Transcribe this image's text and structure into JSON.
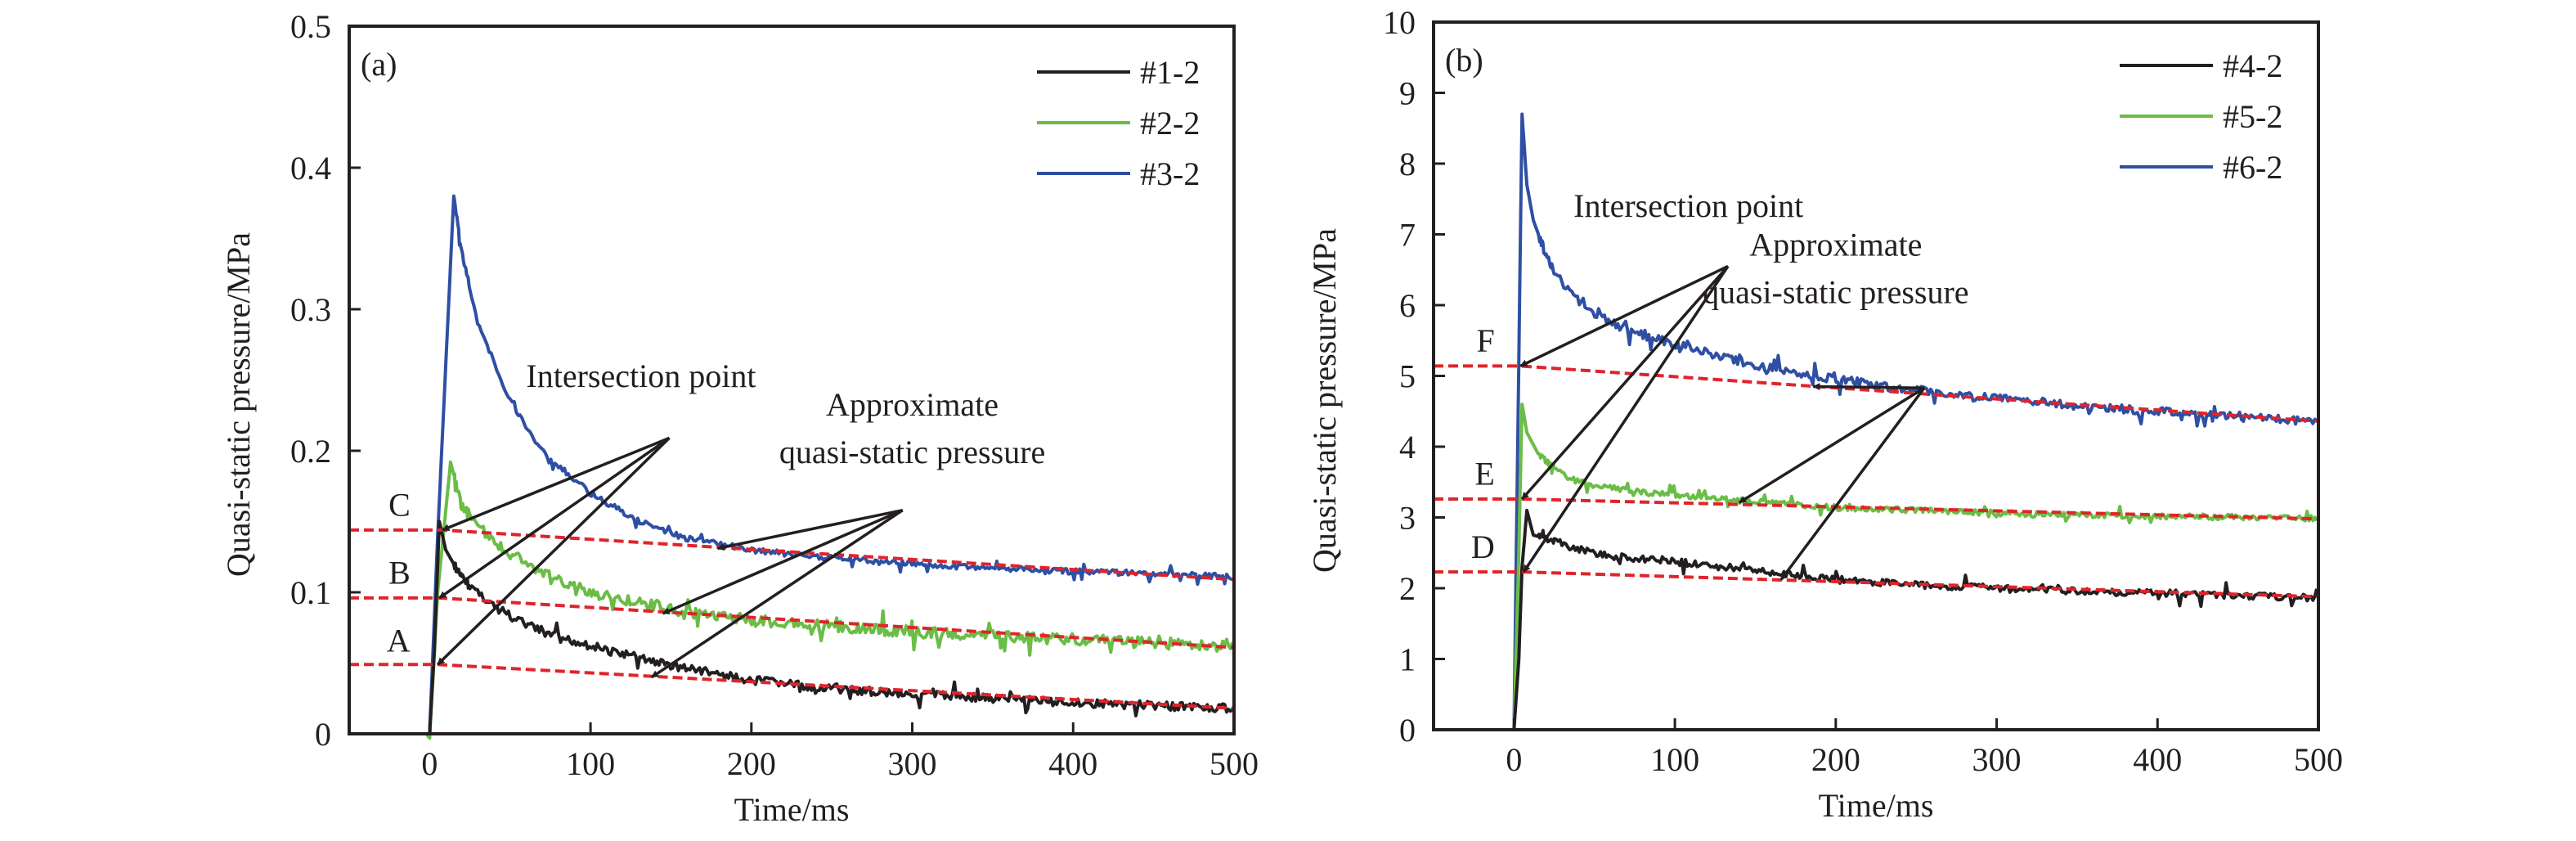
{
  "chart_data": [
    {
      "type": "line",
      "panel": "(a)",
      "xlabel": "Time/ms",
      "ylabel": "Quasi-static pressure/MPa",
      "xlim": [
        -50,
        500
      ],
      "ylim": [
        0,
        0.5
      ],
      "xticks": [
        0,
        100,
        200,
        300,
        400,
        500
      ],
      "yticks": [
        0,
        0.1,
        0.2,
        0.3,
        0.4,
        0.5
      ],
      "ytick_labels": [
        "0",
        "0.1",
        "0.2",
        "0.3",
        "0.4",
        "0.5"
      ],
      "grid": false,
      "legend_position": "top-right",
      "series": [
        {
          "name": "#1-2",
          "color": "#231f20",
          "x": [
            -2,
            0,
            3,
            6,
            10,
            20,
            40,
            60,
            80,
            100,
            150,
            200,
            250,
            300,
            350,
            400,
            450,
            500
          ],
          "y": [
            0,
            0,
            0.06,
            0.15,
            0.13,
            0.11,
            0.09,
            0.077,
            0.068,
            0.062,
            0.048,
            0.038,
            0.032,
            0.028,
            0.025,
            0.022,
            0.02,
            0.018
          ],
          "noise": 0.003
        },
        {
          "name": "#2-2",
          "color": "#6abd45",
          "x": [
            -2,
            0,
            5,
            13,
            20,
            40,
            60,
            80,
            100,
            150,
            200,
            250,
            300,
            350,
            400,
            450,
            500
          ],
          "y": [
            0,
            -0.003,
            0.1,
            0.192,
            0.16,
            0.135,
            0.12,
            0.108,
            0.1,
            0.088,
            0.08,
            0.076,
            0.072,
            0.069,
            0.067,
            0.064,
            0.063
          ],
          "noise": 0.004
        },
        {
          "name": "#3-2",
          "color": "#2e4fa3",
          "x": [
            -2,
            0,
            5,
            15,
            20,
            30,
            50,
            70,
            100,
            130,
            160,
            200,
            250,
            300,
            350,
            400,
            450,
            500
          ],
          "y": [
            0,
            0,
            0.14,
            0.38,
            0.34,
            0.29,
            0.235,
            0.2,
            0.17,
            0.15,
            0.138,
            0.13,
            0.124,
            0.12,
            0.117,
            0.115,
            0.113,
            0.111
          ],
          "noise": 0.002
        }
      ],
      "fit_lines": [
        {
          "label": "A",
          "color": "#e0242b",
          "x": [
            -50,
            5,
            500
          ],
          "y": [
            0.049,
            0.049,
            0.018
          ]
        },
        {
          "label": "B",
          "color": "#e0242b",
          "x": [
            -50,
            6,
            500
          ],
          "y": [
            0.096,
            0.096,
            0.061
          ]
        },
        {
          "label": "C",
          "color": "#e0242b",
          "x": [
            -50,
            8,
            500
          ],
          "y": [
            0.144,
            0.144,
            0.109
          ]
        }
      ],
      "point_labels": [
        {
          "text": "A",
          "x": -12,
          "y": 0.058
        },
        {
          "text": "B",
          "x": -12,
          "y": 0.106
        },
        {
          "text": "C",
          "x": -12,
          "y": 0.154
        }
      ],
      "annotations": [
        {
          "text": "Intersection point",
          "x": 60,
          "y": 0.245,
          "arrow_from": [
            149,
            0.209
          ],
          "arrow_to": [
            [
              8,
              0.144
            ],
            [
              6,
              0.096
            ],
            [
              5,
              0.049
            ]
          ]
        },
        {
          "text_lines": [
            "Approximate",
            "quasi-static pressure"
          ],
          "x": 300,
          "y": 0.225,
          "arrow_from": [
            294,
            0.158
          ],
          "arrow_to": [
            [
              179,
              0.131
            ],
            [
              145,
              0.085
            ],
            [
              138,
              0.04
            ]
          ]
        }
      ]
    },
    {
      "type": "line",
      "panel": "(b)",
      "xlabel": "Time/ms",
      "ylabel": "Quasi-static pressure/MPa",
      "xlim": [
        -50,
        500
      ],
      "ylim": [
        0,
        10
      ],
      "xticks": [
        0,
        100,
        200,
        300,
        400,
        500
      ],
      "yticks": [
        0,
        1,
        2,
        3,
        4,
        5,
        6,
        7,
        8,
        9,
        10
      ],
      "ytick_labels": [
        "0",
        "1",
        "2",
        "3",
        "4",
        "5",
        "6",
        "7",
        "8",
        "9",
        "10"
      ],
      "grid": false,
      "legend_position": "top-right",
      "series": [
        {
          "name": "#4-2",
          "color": "#231f20",
          "x": [
            -2,
            0,
            3,
            5,
            8,
            12,
            20,
            40,
            60,
            100,
            150,
            200,
            250,
            300,
            350,
            400,
            450,
            500
          ],
          "y": [
            0,
            0,
            1.0,
            2.3,
            3.1,
            2.75,
            2.7,
            2.55,
            2.45,
            2.38,
            2.25,
            2.12,
            2.05,
            2.0,
            1.96,
            1.93,
            1.9,
            1.86
          ],
          "noise": 0.05
        },
        {
          "name": "#5-2",
          "color": "#6abd45",
          "x": [
            -2,
            0,
            3,
            5,
            8,
            15,
            30,
            50,
            80,
            120,
            160,
            200,
            250,
            300,
            350,
            400,
            450,
            500
          ],
          "y": [
            0,
            0,
            2.5,
            4.6,
            4.2,
            3.9,
            3.6,
            3.45,
            3.35,
            3.28,
            3.2,
            3.14,
            3.1,
            3.06,
            3.04,
            3.02,
            3.0,
            2.98
          ],
          "noise": 0.04
        },
        {
          "name": "#6-2",
          "color": "#2e4fa3",
          "x": [
            -2,
            0,
            2,
            5,
            8,
            12,
            20,
            30,
            50,
            70,
            100,
            150,
            200,
            250,
            300,
            350,
            400,
            450,
            500
          ],
          "y": [
            0,
            0,
            3.5,
            8.7,
            7.7,
            7.2,
            6.7,
            6.3,
            5.9,
            5.65,
            5.45,
            5.15,
            4.95,
            4.8,
            4.68,
            4.58,
            4.5,
            4.42,
            4.36
          ],
          "noise": 0.06
        }
      ],
      "fit_lines": [
        {
          "label": "D",
          "color": "#e0242b",
          "x": [
            -50,
            6,
            500
          ],
          "y": [
            2.23,
            2.23,
            1.88
          ]
        },
        {
          "label": "E",
          "color": "#e0242b",
          "x": [
            -50,
            5,
            500
          ],
          "y": [
            3.26,
            3.26,
            2.98
          ]
        },
        {
          "label": "F",
          "color": "#e0242b",
          "x": [
            -50,
            4,
            500
          ],
          "y": [
            5.14,
            5.14,
            4.36
          ]
        }
      ],
      "point_labels": [
        {
          "text": "D",
          "x": -12,
          "y": 2.43
        },
        {
          "text": "E",
          "x": -12,
          "y": 3.46
        },
        {
          "text": "F",
          "x": -12,
          "y": 5.34
        }
      ],
      "annotations": [
        {
          "text": "Intersection point",
          "x": 37,
          "y": 7.25,
          "arrow_from": [
            133,
            6.55
          ],
          "arrow_to": [
            [
              4,
              5.14
            ],
            [
              5,
              3.26
            ],
            [
              6,
              2.23
            ]
          ]
        },
        {
          "text_lines": [
            "Approximate",
            "quasi-static pressure"
          ],
          "x": 200,
          "y": 6.7,
          "arrow_from": [
            255,
            4.83
          ],
          "arrow_to": [
            [
              186,
              4.85
            ],
            [
              140,
              3.21
            ],
            [
              166,
              2.12
            ]
          ]
        }
      ]
    }
  ]
}
